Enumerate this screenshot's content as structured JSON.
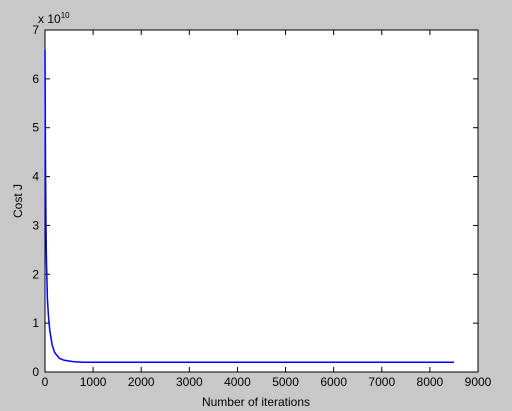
{
  "chart_data": {
    "type": "line",
    "xlabel": "Number of iterations",
    "ylabel": "Cost J",
    "y_multiplier": {
      "label": "x 10",
      "exponent": "10"
    },
    "x": [
      0,
      5,
      10,
      20,
      30,
      50,
      75,
      100,
      150,
      200,
      300,
      400,
      600,
      800,
      1500,
      8500
    ],
    "series": [
      {
        "color": "#0000ff",
        "values": [
          6.6,
          5.5,
          4.4,
          3.0,
          2.3,
          1.5,
          1.1,
          0.85,
          0.55,
          0.4,
          0.28,
          0.24,
          0.21,
          0.2,
          0.2,
          0.2
        ]
      }
    ],
    "xlim": [
      0,
      9000
    ],
    "xticks": [
      0,
      1000,
      2000,
      3000,
      4000,
      5000,
      6000,
      7000,
      8000,
      9000
    ],
    "ylim": [
      0,
      7
    ],
    "yticks": [
      0,
      1,
      2,
      3,
      4,
      5,
      6,
      7
    ]
  }
}
